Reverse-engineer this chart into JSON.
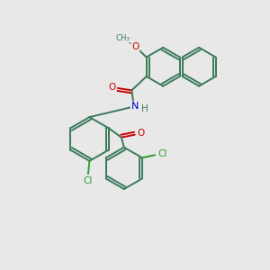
{
  "background_color": "#e8e8e8",
  "bond_color": "#3a7a5a",
  "atom_colors": {
    "O": "#cc0000",
    "N": "#0000cc",
    "Cl": "#2d9e2d",
    "H": "#3a7a5a"
  },
  "figsize": [
    3.0,
    3.0
  ],
  "dpi": 100
}
